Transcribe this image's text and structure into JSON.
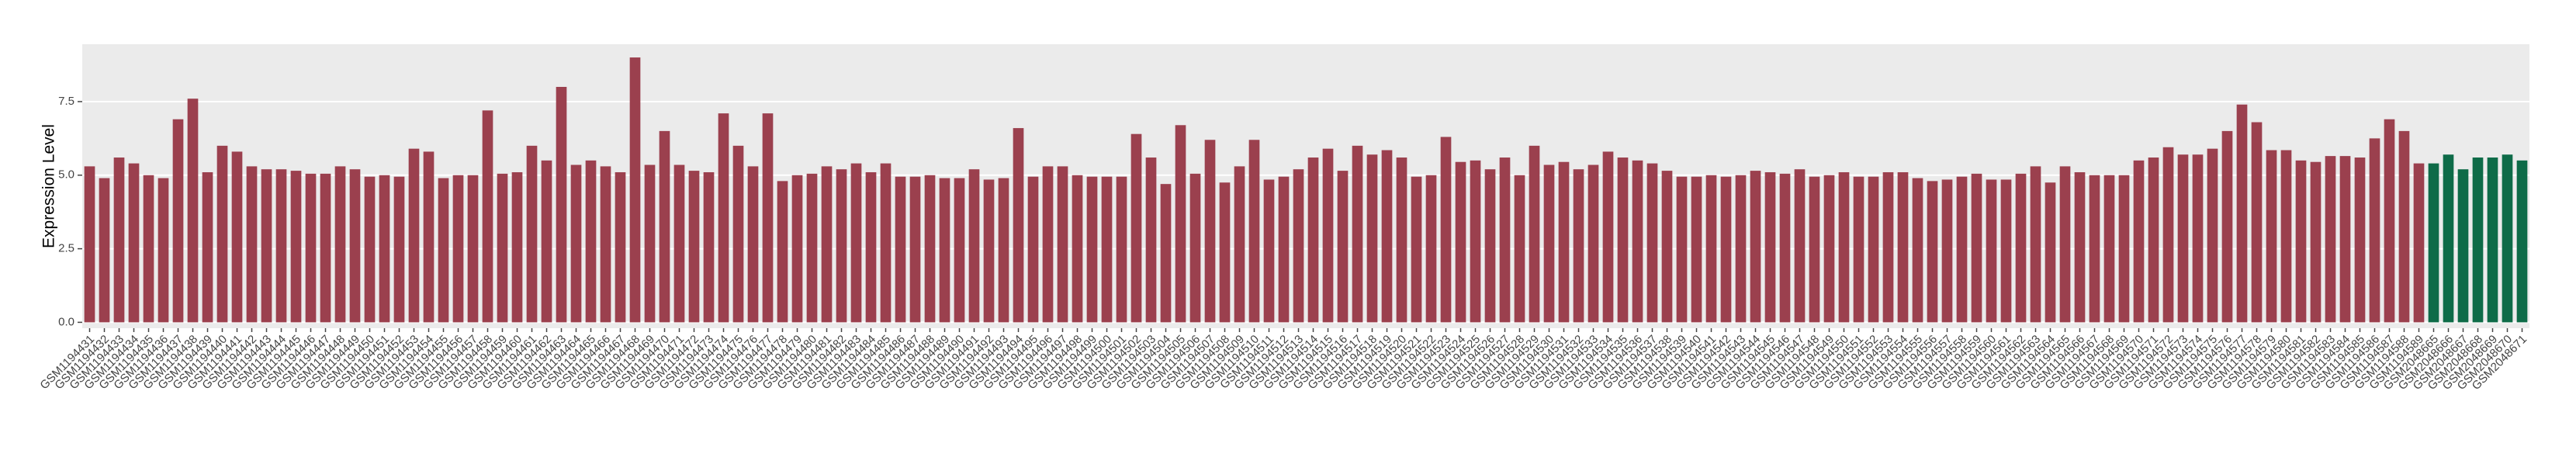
{
  "chart_data": {
    "type": "bar",
    "y_label": "Expression Level",
    "categories": [
      "GSM1194431",
      "GSM1194432",
      "GSM1194433",
      "GSM1194434",
      "GSM1194435",
      "GSM1194436",
      "GSM1194437",
      "GSM1194438",
      "GSM1194439",
      "GSM1194440",
      "GSM1194441",
      "GSM1194442",
      "GSM1194443",
      "GSM1194444",
      "GSM1194445",
      "GSM1194446",
      "GSM1194447",
      "GSM1194448",
      "GSM1194449",
      "GSM1194450",
      "GSM1194451",
      "GSM1194452",
      "GSM1194453",
      "GSM1194454",
      "GSM1194455",
      "GSM1194456",
      "GSM1194457",
      "GSM1194458",
      "GSM1194459",
      "GSM1194460",
      "GSM1194461",
      "GSM1194462",
      "GSM1194463",
      "GSM1194464",
      "GSM1194465",
      "GSM1194466",
      "GSM1194467",
      "GSM1194468",
      "GSM1194469",
      "GSM1194470",
      "GSM1194471",
      "GSM1194472",
      "GSM1194473",
      "GSM1194474",
      "GSM1194475",
      "GSM1194476",
      "GSM1194477",
      "GSM1194478",
      "GSM1194479",
      "GSM1194480",
      "GSM1194481",
      "GSM1194482",
      "GSM1194483",
      "GSM1194484",
      "GSM1194485",
      "GSM1194486",
      "GSM1194487",
      "GSM1194488",
      "GSM1194489",
      "GSM1194490",
      "GSM1194491",
      "GSM1194492",
      "GSM1194493",
      "GSM1194494",
      "GSM1194495",
      "GSM1194496",
      "GSM1194497",
      "GSM1194498",
      "GSM1194499",
      "GSM1194500",
      "GSM1194501",
      "GSM1194502",
      "GSM1194503",
      "GSM1194504",
      "GSM1194505",
      "GSM1194506",
      "GSM1194507",
      "GSM1194508",
      "GSM1194509",
      "GSM1194510",
      "GSM1194511",
      "GSM1194512",
      "GSM1194513",
      "GSM1194514",
      "GSM1194515",
      "GSM1194516",
      "GSM1194517",
      "GSM1194518",
      "GSM1194519",
      "GSM1194520",
      "GSM1194521",
      "GSM1194522",
      "GSM1194523",
      "GSM1194524",
      "GSM1194525",
      "GSM1194526",
      "GSM1194527",
      "GSM1194528",
      "GSM1194529",
      "GSM1194530",
      "GSM1194531",
      "GSM1194532",
      "GSM1194533",
      "GSM1194534",
      "GSM1194535",
      "GSM1194536",
      "GSM1194537",
      "GSM1194538",
      "GSM1194539",
      "GSM1194540",
      "GSM1194541",
      "GSM1194542",
      "GSM1194543",
      "GSM1194544",
      "GSM1194545",
      "GSM1194546",
      "GSM1194547",
      "GSM1194548",
      "GSM1194549",
      "GSM1194550",
      "GSM1194551",
      "GSM1194552",
      "GSM1194553",
      "GSM1194554",
      "GSM1194555",
      "GSM1194556",
      "GSM1194557",
      "GSM1194558",
      "GSM1194559",
      "GSM1194560",
      "GSM1194561",
      "GSM1194562",
      "GSM1194563",
      "GSM1194564",
      "GSM1194565",
      "GSM1194566",
      "GSM1194567",
      "GSM1194568",
      "GSM1194569",
      "GSM1194570",
      "GSM1194571",
      "GSM1194572",
      "GSM1194573",
      "GSM1194574",
      "GSM1194575",
      "GSM1194576",
      "GSM1194577",
      "GSM1194578",
      "GSM1194579",
      "GSM1194580",
      "GSM1194581",
      "GSM1194582",
      "GSM1194583",
      "GSM1194584",
      "GSM1194585",
      "GSM1194586",
      "GSM1194587",
      "GSM1194588",
      "GSM1194589",
      "GSM2048665",
      "GSM2048666",
      "GSM2048667",
      "GSM2048668",
      "GSM2048669",
      "GSM2048670",
      "GSM2048671"
    ],
    "values": [
      5.3,
      4.9,
      5.6,
      5.4,
      5.0,
      4.9,
      6.9,
      7.6,
      5.1,
      6.0,
      5.8,
      5.3,
      5.2,
      5.2,
      5.15,
      5.05,
      5.05,
      5.3,
      5.2,
      4.95,
      5.0,
      4.95,
      5.9,
      5.8,
      4.9,
      5.0,
      5.0,
      7.2,
      5.05,
      5.1,
      6.0,
      5.5,
      8.0,
      5.35,
      5.5,
      5.3,
      5.1,
      9.0,
      5.35,
      6.5,
      5.35,
      5.15,
      5.1,
      7.1,
      6.0,
      5.3,
      7.1,
      4.8,
      5.0,
      5.05,
      5.3,
      5.2,
      5.4,
      5.1,
      5.4,
      4.95,
      4.95,
      5.0,
      4.9,
      4.9,
      5.2,
      4.85,
      4.9,
      6.6,
      4.95,
      5.3,
      5.3,
      5.0,
      4.95,
      4.95,
      4.95,
      6.4,
      5.6,
      4.7,
      6.7,
      5.05,
      6.2,
      4.75,
      5.3,
      6.2,
      4.85,
      4.95,
      5.2,
      5.6,
      5.9,
      5.15,
      6.0,
      5.7,
      5.85,
      5.6,
      4.95,
      5.0,
      6.3,
      5.45,
      5.5,
      5.2,
      5.6,
      5.0,
      6.0,
      5.35,
      5.45,
      5.2,
      5.35,
      5.8,
      5.6,
      5.5,
      5.4,
      5.15,
      4.95,
      4.95,
      5.0,
      4.95,
      5.0,
      5.15,
      5.1,
      5.05,
      5.2,
      4.95,
      5.0,
      5.1,
      4.95,
      4.95,
      5.1,
      5.1,
      4.9,
      4.8,
      4.85,
      4.95,
      5.05,
      4.85,
      4.85,
      5.05,
      5.3,
      4.75,
      5.3,
      5.1,
      5.0,
      5.0,
      5.0,
      5.5,
      5.6,
      5.95,
      5.7,
      5.7,
      5.9,
      6.5,
      7.4,
      6.8,
      5.85,
      5.85,
      5.5,
      5.45,
      5.65,
      5.65,
      5.6,
      6.25,
      6.9,
      6.5,
      5.4,
      5.4,
      5.7,
      5.2,
      5.6,
      5.6,
      5.7,
      5.5
    ],
    "colors": [
      "#9b404e",
      "#9b404e",
      "#9b404e",
      "#9b404e",
      "#9b404e",
      "#9b404e",
      "#9b404e",
      "#9b404e",
      "#9b404e",
      "#9b404e",
      "#9b404e",
      "#9b404e",
      "#9b404e",
      "#9b404e",
      "#9b404e",
      "#9b404e",
      "#9b404e",
      "#9b404e",
      "#9b404e",
      "#9b404e",
      "#9b404e",
      "#9b404e",
      "#9b404e",
      "#9b404e",
      "#9b404e",
      "#9b404e",
      "#9b404e",
      "#9b404e",
      "#9b404e",
      "#9b404e",
      "#9b404e",
      "#9b404e",
      "#9b404e",
      "#9b404e",
      "#9b404e",
      "#9b404e",
      "#9b404e",
      "#9b404e",
      "#9b404e",
      "#9b404e",
      "#9b404e",
      "#9b404e",
      "#9b404e",
      "#9b404e",
      "#9b404e",
      "#9b404e",
      "#9b404e",
      "#9b404e",
      "#9b404e",
      "#9b404e",
      "#9b404e",
      "#9b404e",
      "#9b404e",
      "#9b404e",
      "#9b404e",
      "#9b404e",
      "#9b404e",
      "#9b404e",
      "#9b404e",
      "#9b404e",
      "#9b404e",
      "#9b404e",
      "#9b404e",
      "#9b404e",
      "#9b404e",
      "#9b404e",
      "#9b404e",
      "#9b404e",
      "#9b404e",
      "#9b404e",
      "#9b404e",
      "#9b404e",
      "#9b404e",
      "#9b404e",
      "#9b404e",
      "#9b404e",
      "#9b404e",
      "#9b404e",
      "#9b404e",
      "#9b404e",
      "#9b404e",
      "#9b404e",
      "#9b404e",
      "#9b404e",
      "#9b404e",
      "#9b404e",
      "#9b404e",
      "#9b404e",
      "#9b404e",
      "#9b404e",
      "#9b404e",
      "#9b404e",
      "#9b404e",
      "#9b404e",
      "#9b404e",
      "#9b404e",
      "#9b404e",
      "#9b404e",
      "#9b404e",
      "#9b404e",
      "#9b404e",
      "#9b404e",
      "#9b404e",
      "#9b404e",
      "#9b404e",
      "#9b404e",
      "#9b404e",
      "#9b404e",
      "#9b404e",
      "#9b404e",
      "#9b404e",
      "#9b404e",
      "#9b404e",
      "#9b404e",
      "#9b404e",
      "#9b404e",
      "#9b404e",
      "#9b404e",
      "#9b404e",
      "#9b404e",
      "#9b404e",
      "#9b404e",
      "#9b404e",
      "#9b404e",
      "#9b404e",
      "#9b404e",
      "#9b404e",
      "#9b404e",
      "#9b404e",
      "#9b404e",
      "#9b404e",
      "#9b404e",
      "#9b404e",
      "#9b404e",
      "#9b404e",
      "#9b404e",
      "#9b404e",
      "#9b404e",
      "#9b404e",
      "#9b404e",
      "#9b404e",
      "#9b404e",
      "#9b404e",
      "#9b404e",
      "#9b404e",
      "#9b404e",
      "#9b404e",
      "#9b404e",
      "#9b404e",
      "#9b404e",
      "#9b404e",
      "#9b404e",
      "#9b404e",
      "#9b404e",
      "#9b404e",
      "#9b404e",
      "#9b404e",
      "#9b404e",
      "#9b404e",
      "#0e6b48",
      "#0e6b48",
      "#0e6b48",
      "#0e6b48",
      "#0e6b48",
      "#0e6b48",
      "#0e6b48"
    ],
    "ylim": [
      -0.2,
      9.45
    ],
    "yticks": [
      {
        "value": 0,
        "label": "0.0"
      },
      {
        "value": 2.5,
        "label": "2.5"
      },
      {
        "value": 5,
        "label": "5.0"
      },
      7.5
    ],
    "grid": true
  }
}
